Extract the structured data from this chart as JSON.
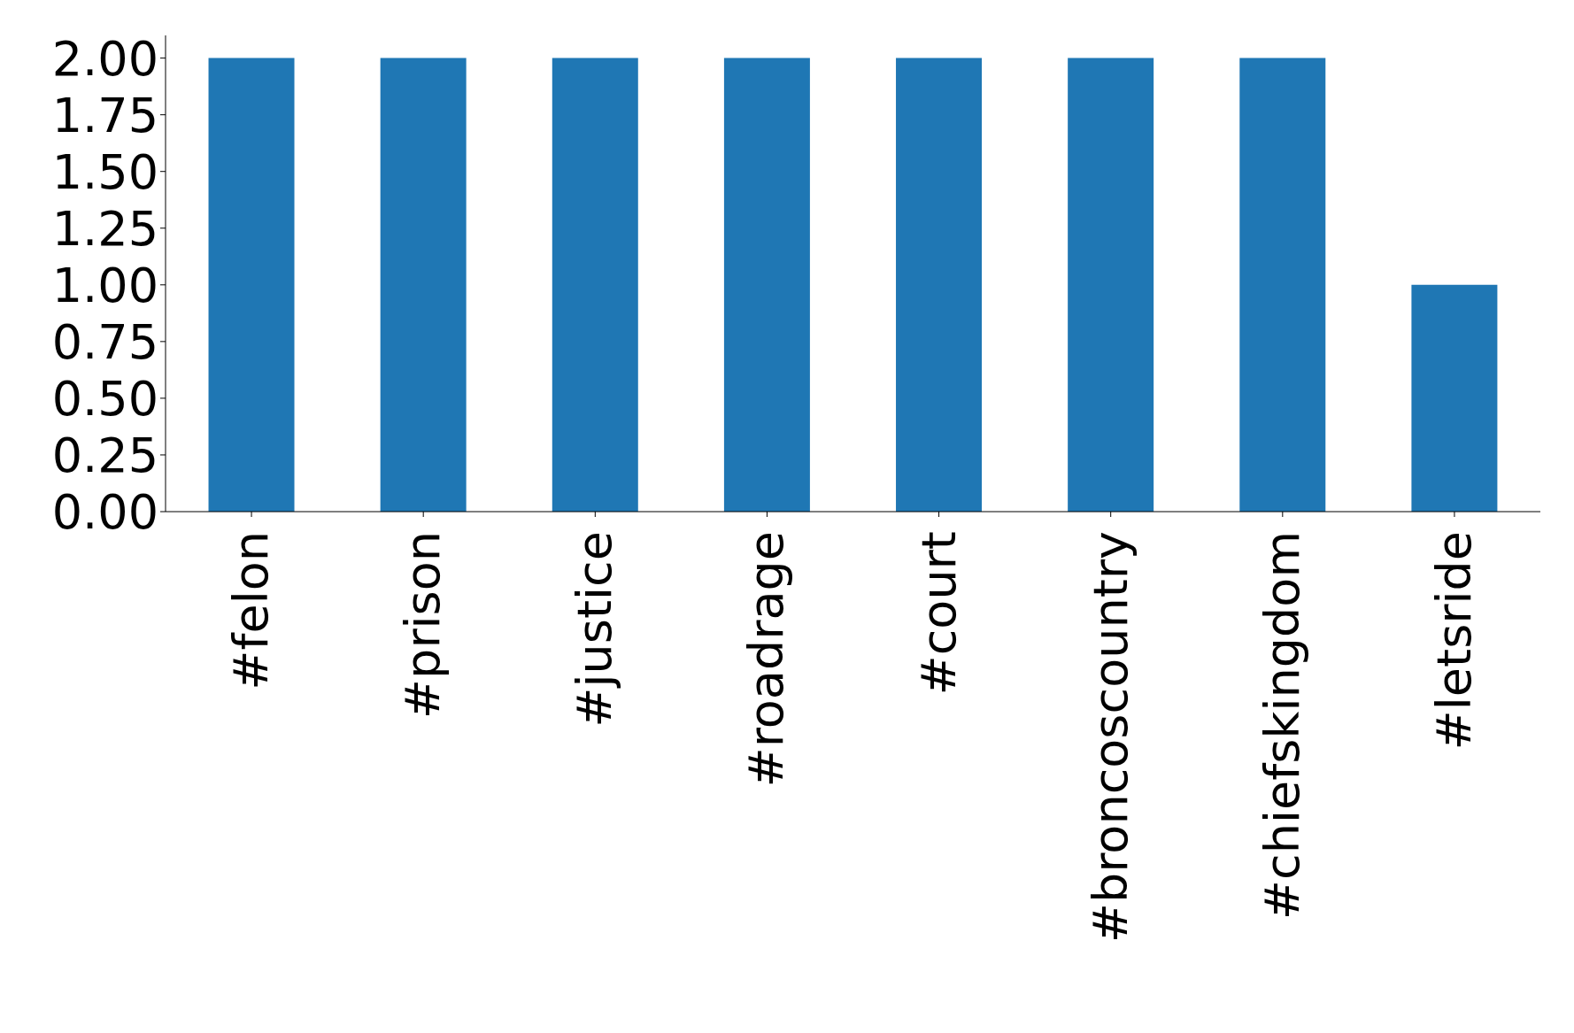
{
  "chart_data": {
    "type": "bar",
    "categories": [
      "#felon",
      "#prison",
      "#justice",
      "#roadrage",
      "#court",
      "#broncoscountry",
      "#chiefskingdom",
      "#letsride"
    ],
    "values": [
      2,
      2,
      2,
      2,
      2,
      2,
      2,
      1
    ],
    "color": "#1f77b4",
    "ylim": [
      0,
      2.1
    ],
    "yticks": [
      {
        "value": 0,
        "label": "0.00"
      },
      {
        "value": 0.25,
        "label": "0.25"
      },
      {
        "value": 0.5,
        "label": "0.50"
      },
      {
        "value": 0.75,
        "label": "0.75"
      },
      {
        "value": 1,
        "label": "1.00"
      },
      {
        "value": 1.25,
        "label": "1.25"
      },
      {
        "value": 1.5,
        "label": "1.50"
      },
      {
        "value": 1.75,
        "label": "1.75"
      },
      {
        "value": 2,
        "label": "2.00"
      }
    ],
    "grid": false,
    "legend": false
  }
}
